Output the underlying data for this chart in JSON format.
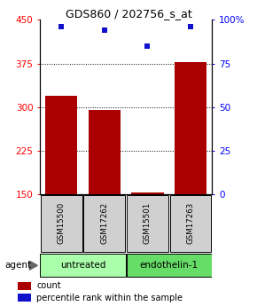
{
  "title": "GDS860 / 202756_s_at",
  "samples": [
    "GSM15500",
    "GSM17262",
    "GSM15501",
    "GSM17263"
  ],
  "bar_values": [
    320,
    295,
    153,
    378
  ],
  "percentile_values": [
    96,
    94,
    85,
    96
  ],
  "ylim_left": [
    150,
    450
  ],
  "ylim_right": [
    0,
    100
  ],
  "left_ticks": [
    150,
    225,
    300,
    375,
    450
  ],
  "right_ticks": [
    0,
    25,
    50,
    75,
    100
  ],
  "right_tick_labels": [
    "0",
    "25",
    "50",
    "75",
    "100%"
  ],
  "bar_color": "#aa0000",
  "point_color": "#1111cc",
  "bar_width": 0.75,
  "groups": [
    {
      "label": "untreated",
      "samples": [
        0,
        1
      ],
      "color": "#aaffaa"
    },
    {
      "label": "endothelin-1",
      "samples": [
        2,
        3
      ],
      "color": "#66dd66"
    }
  ],
  "agent_label": "agent",
  "legend_count_label": "count",
  "legend_pct_label": "percentile rank within the sample",
  "background_color": "#ffffff"
}
